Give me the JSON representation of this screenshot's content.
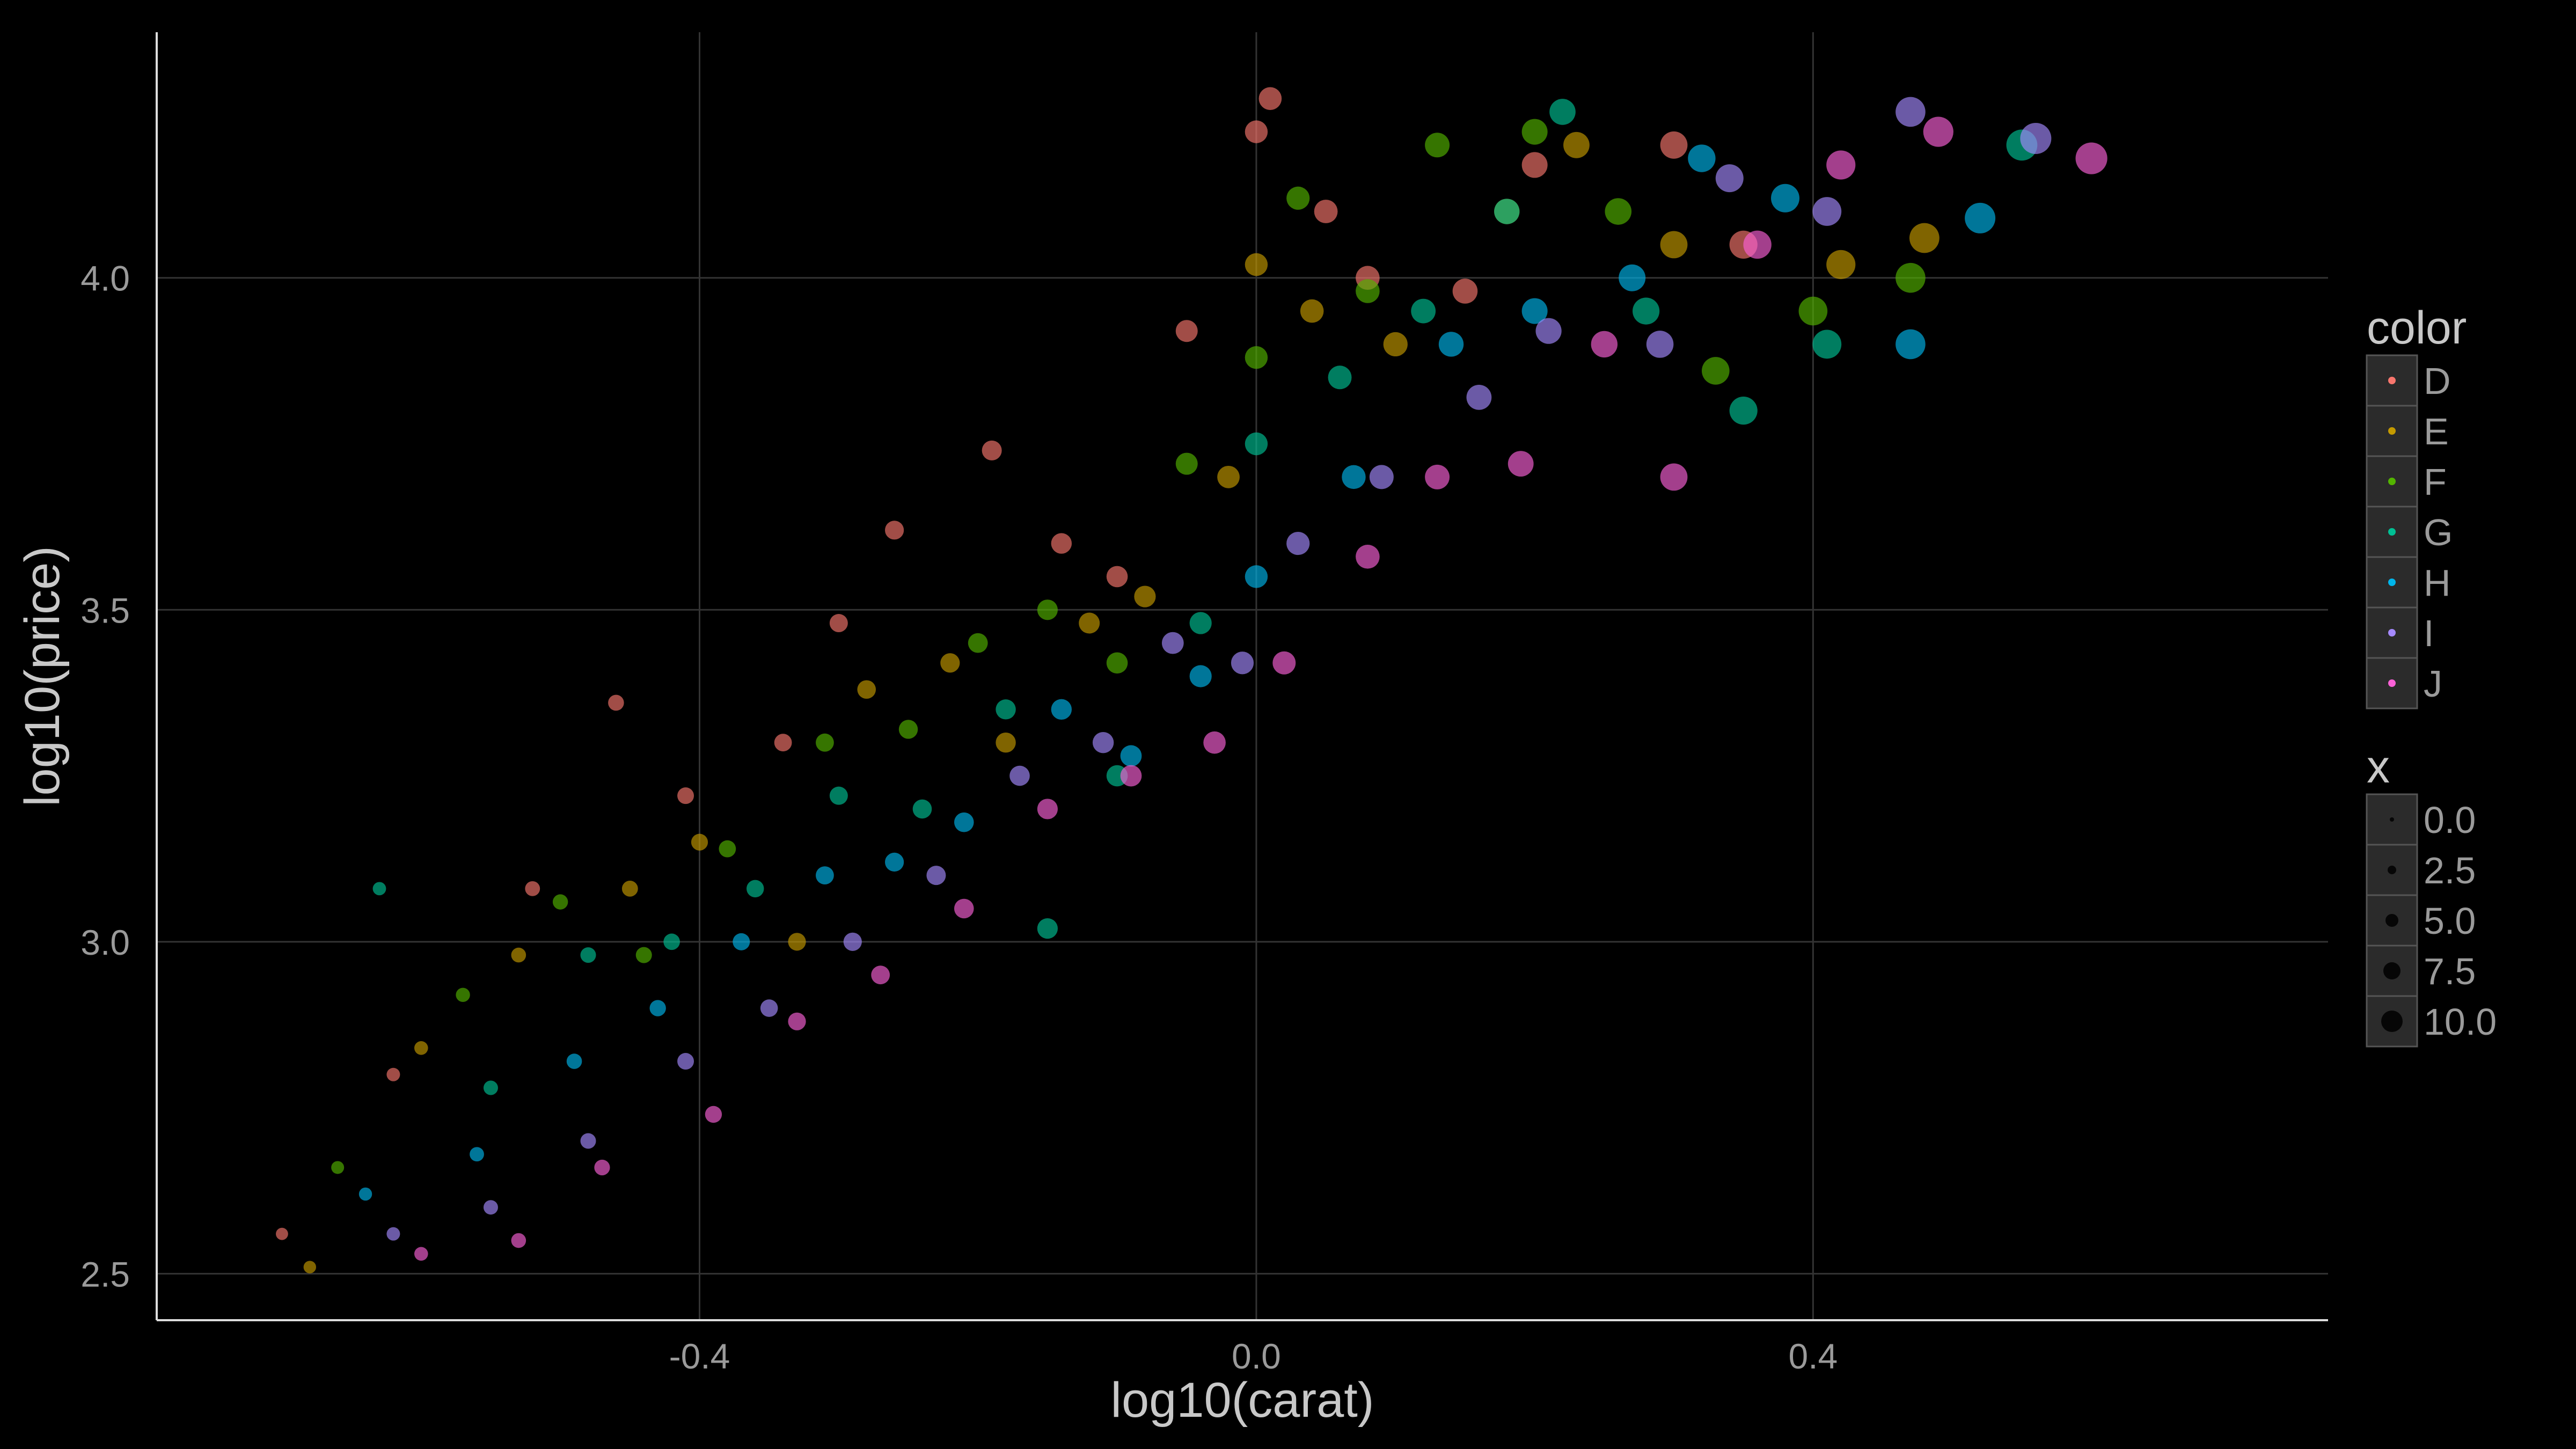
{
  "chart_data": {
    "type": "scatter",
    "title": "",
    "xlabel": "log10(carat)",
    "ylabel": "log10(price)",
    "xlim": [
      -0.79,
      0.77
    ],
    "ylim": [
      2.43,
      4.37
    ],
    "x_ticks": [
      {
        "value": -0.4,
        "label": "-0.4"
      },
      {
        "value": 0.0,
        "label": "0.0"
      },
      {
        "value": 0.4,
        "label": "0.4"
      }
    ],
    "y_ticks": [
      {
        "value": 2.5,
        "label": "2.5"
      },
      {
        "value": 3.0,
        "label": "3.0"
      },
      {
        "value": 3.5,
        "label": "3.5"
      },
      {
        "value": 4.0,
        "label": "4.0"
      }
    ],
    "grid": true,
    "background": "#000000",
    "grid_color": "#333333",
    "axis_color": "#dddddd",
    "legends": [
      {
        "title": "color",
        "position": "right",
        "entries": [
          {
            "label": "D",
            "color": "#F8766D"
          },
          {
            "label": "E",
            "color": "#C49A00"
          },
          {
            "label": "F",
            "color": "#53B400"
          },
          {
            "label": "G",
            "color": "#00C094"
          },
          {
            "label": "H",
            "color": "#00B6EB"
          },
          {
            "label": "I",
            "color": "#A58AFF"
          },
          {
            "label": "J",
            "color": "#FB61D7"
          }
        ]
      },
      {
        "title": "x",
        "position": "right",
        "entries": [
          {
            "label": "0.0",
            "value": 0.0
          },
          {
            "label": "2.5",
            "value": 2.5
          },
          {
            "label": "5.0",
            "value": 5.0
          },
          {
            "label": "7.5",
            "value": 7.5
          },
          {
            "label": "10.0",
            "value": 10.0
          }
        ]
      }
    ],
    "series": [
      {
        "name": "D",
        "color": "#F8766D",
        "points": [
          [
            -0.7,
            2.56
          ],
          [
            -0.62,
            2.8
          ],
          [
            -0.52,
            3.08
          ],
          [
            -0.46,
            3.36
          ],
          [
            -0.41,
            3.22
          ],
          [
            -0.34,
            3.3
          ],
          [
            -0.3,
            3.48
          ],
          [
            -0.26,
            3.62
          ],
          [
            -0.19,
            3.74
          ],
          [
            -0.14,
            3.6
          ],
          [
            -0.1,
            3.55
          ],
          [
            -0.05,
            3.92
          ],
          [
            0.0,
            4.22
          ],
          [
            0.01,
            4.27
          ],
          [
            0.05,
            4.1
          ],
          [
            0.08,
            4.0
          ],
          [
            0.15,
            3.98
          ],
          [
            0.2,
            4.17
          ],
          [
            0.3,
            4.2
          ],
          [
            0.35,
            4.05
          ]
        ]
      },
      {
        "name": "E",
        "color": "#C49A00",
        "points": [
          [
            -0.68,
            2.51
          ],
          [
            -0.6,
            2.84
          ],
          [
            -0.53,
            2.98
          ],
          [
            -0.45,
            3.08
          ],
          [
            -0.4,
            3.15
          ],
          [
            -0.33,
            3.0
          ],
          [
            -0.28,
            3.38
          ],
          [
            -0.22,
            3.42
          ],
          [
            -0.18,
            3.3
          ],
          [
            -0.12,
            3.48
          ],
          [
            -0.08,
            3.52
          ],
          [
            -0.02,
            3.7
          ],
          [
            0.0,
            4.02
          ],
          [
            0.04,
            3.95
          ],
          [
            0.1,
            3.9
          ],
          [
            0.18,
            4.1
          ],
          [
            0.23,
            4.2
          ],
          [
            0.3,
            4.05
          ],
          [
            0.42,
            4.02
          ],
          [
            0.48,
            4.06
          ]
        ]
      },
      {
        "name": "F",
        "color": "#53B400",
        "points": [
          [
            -0.66,
            2.66
          ],
          [
            -0.57,
            2.92
          ],
          [
            -0.5,
            3.06
          ],
          [
            -0.44,
            2.98
          ],
          [
            -0.38,
            3.14
          ],
          [
            -0.31,
            3.3
          ],
          [
            -0.25,
            3.32
          ],
          [
            -0.2,
            3.45
          ],
          [
            -0.15,
            3.5
          ],
          [
            -0.1,
            3.42
          ],
          [
            -0.05,
            3.72
          ],
          [
            0.0,
            3.88
          ],
          [
            0.03,
            4.12
          ],
          [
            0.08,
            3.98
          ],
          [
            0.13,
            4.2
          ],
          [
            0.2,
            4.22
          ],
          [
            0.26,
            4.1
          ],
          [
            0.33,
            3.86
          ],
          [
            0.4,
            3.95
          ],
          [
            0.47,
            4.0
          ]
        ]
      },
      {
        "name": "G",
        "color": "#00C094",
        "points": [
          [
            -0.63,
            3.08
          ],
          [
            -0.55,
            2.78
          ],
          [
            -0.48,
            2.98
          ],
          [
            -0.42,
            3.0
          ],
          [
            -0.36,
            3.08
          ],
          [
            -0.3,
            3.22
          ],
          [
            -0.24,
            3.2
          ],
          [
            -0.18,
            3.35
          ],
          [
            -0.15,
            3.02
          ],
          [
            -0.1,
            3.25
          ],
          [
            -0.04,
            3.48
          ],
          [
            0.0,
            3.75
          ],
          [
            0.06,
            3.85
          ],
          [
            0.12,
            3.95
          ],
          [
            0.18,
            4.1
          ],
          [
            0.22,
            4.25
          ],
          [
            0.28,
            3.95
          ],
          [
            0.35,
            3.8
          ],
          [
            0.41,
            3.9
          ],
          [
            0.55,
            4.2
          ]
        ]
      },
      {
        "name": "H",
        "color": "#00B6EB",
        "points": [
          [
            -0.64,
            2.62
          ],
          [
            -0.56,
            2.68
          ],
          [
            -0.49,
            2.82
          ],
          [
            -0.43,
            2.9
          ],
          [
            -0.37,
            3.0
          ],
          [
            -0.31,
            3.1
          ],
          [
            -0.26,
            3.12
          ],
          [
            -0.21,
            3.18
          ],
          [
            -0.14,
            3.35
          ],
          [
            -0.09,
            3.28
          ],
          [
            -0.04,
            3.4
          ],
          [
            0.0,
            3.55
          ],
          [
            0.07,
            3.7
          ],
          [
            0.14,
            3.9
          ],
          [
            0.2,
            3.95
          ],
          [
            0.27,
            4.0
          ],
          [
            0.32,
            4.18
          ],
          [
            0.38,
            4.12
          ],
          [
            0.47,
            3.9
          ],
          [
            0.52,
            4.09
          ]
        ]
      },
      {
        "name": "I",
        "color": "#A58AFF",
        "points": [
          [
            -0.62,
            2.56
          ],
          [
            -0.55,
            2.6
          ],
          [
            -0.48,
            2.7
          ],
          [
            -0.41,
            2.82
          ],
          [
            -0.35,
            2.9
          ],
          [
            -0.29,
            3.0
          ],
          [
            -0.23,
            3.1
          ],
          [
            -0.17,
            3.25
          ],
          [
            -0.11,
            3.3
          ],
          [
            -0.06,
            3.45
          ],
          [
            -0.01,
            3.42
          ],
          [
            0.03,
            3.6
          ],
          [
            0.09,
            3.7
          ],
          [
            0.16,
            3.82
          ],
          [
            0.21,
            3.92
          ],
          [
            0.29,
            3.9
          ],
          [
            0.34,
            4.15
          ],
          [
            0.41,
            4.1
          ],
          [
            0.47,
            4.25
          ],
          [
            0.56,
            4.21
          ]
        ]
      },
      {
        "name": "J",
        "color": "#FB61D7",
        "points": [
          [
            -0.6,
            2.53
          ],
          [
            -0.53,
            2.55
          ],
          [
            -0.47,
            2.66
          ],
          [
            -0.39,
            2.74
          ],
          [
            -0.33,
            2.88
          ],
          [
            -0.27,
            2.95
          ],
          [
            -0.21,
            3.05
          ],
          [
            -0.15,
            3.2
          ],
          [
            -0.09,
            3.25
          ],
          [
            -0.03,
            3.3
          ],
          [
            0.02,
            3.42
          ],
          [
            0.08,
            3.58
          ],
          [
            0.13,
            3.7
          ],
          [
            0.19,
            3.72
          ],
          [
            0.25,
            3.9
          ],
          [
            0.3,
            3.7
          ],
          [
            0.36,
            4.05
          ],
          [
            0.42,
            4.17
          ],
          [
            0.49,
            4.22
          ],
          [
            0.6,
            4.18
          ]
        ]
      }
    ]
  }
}
